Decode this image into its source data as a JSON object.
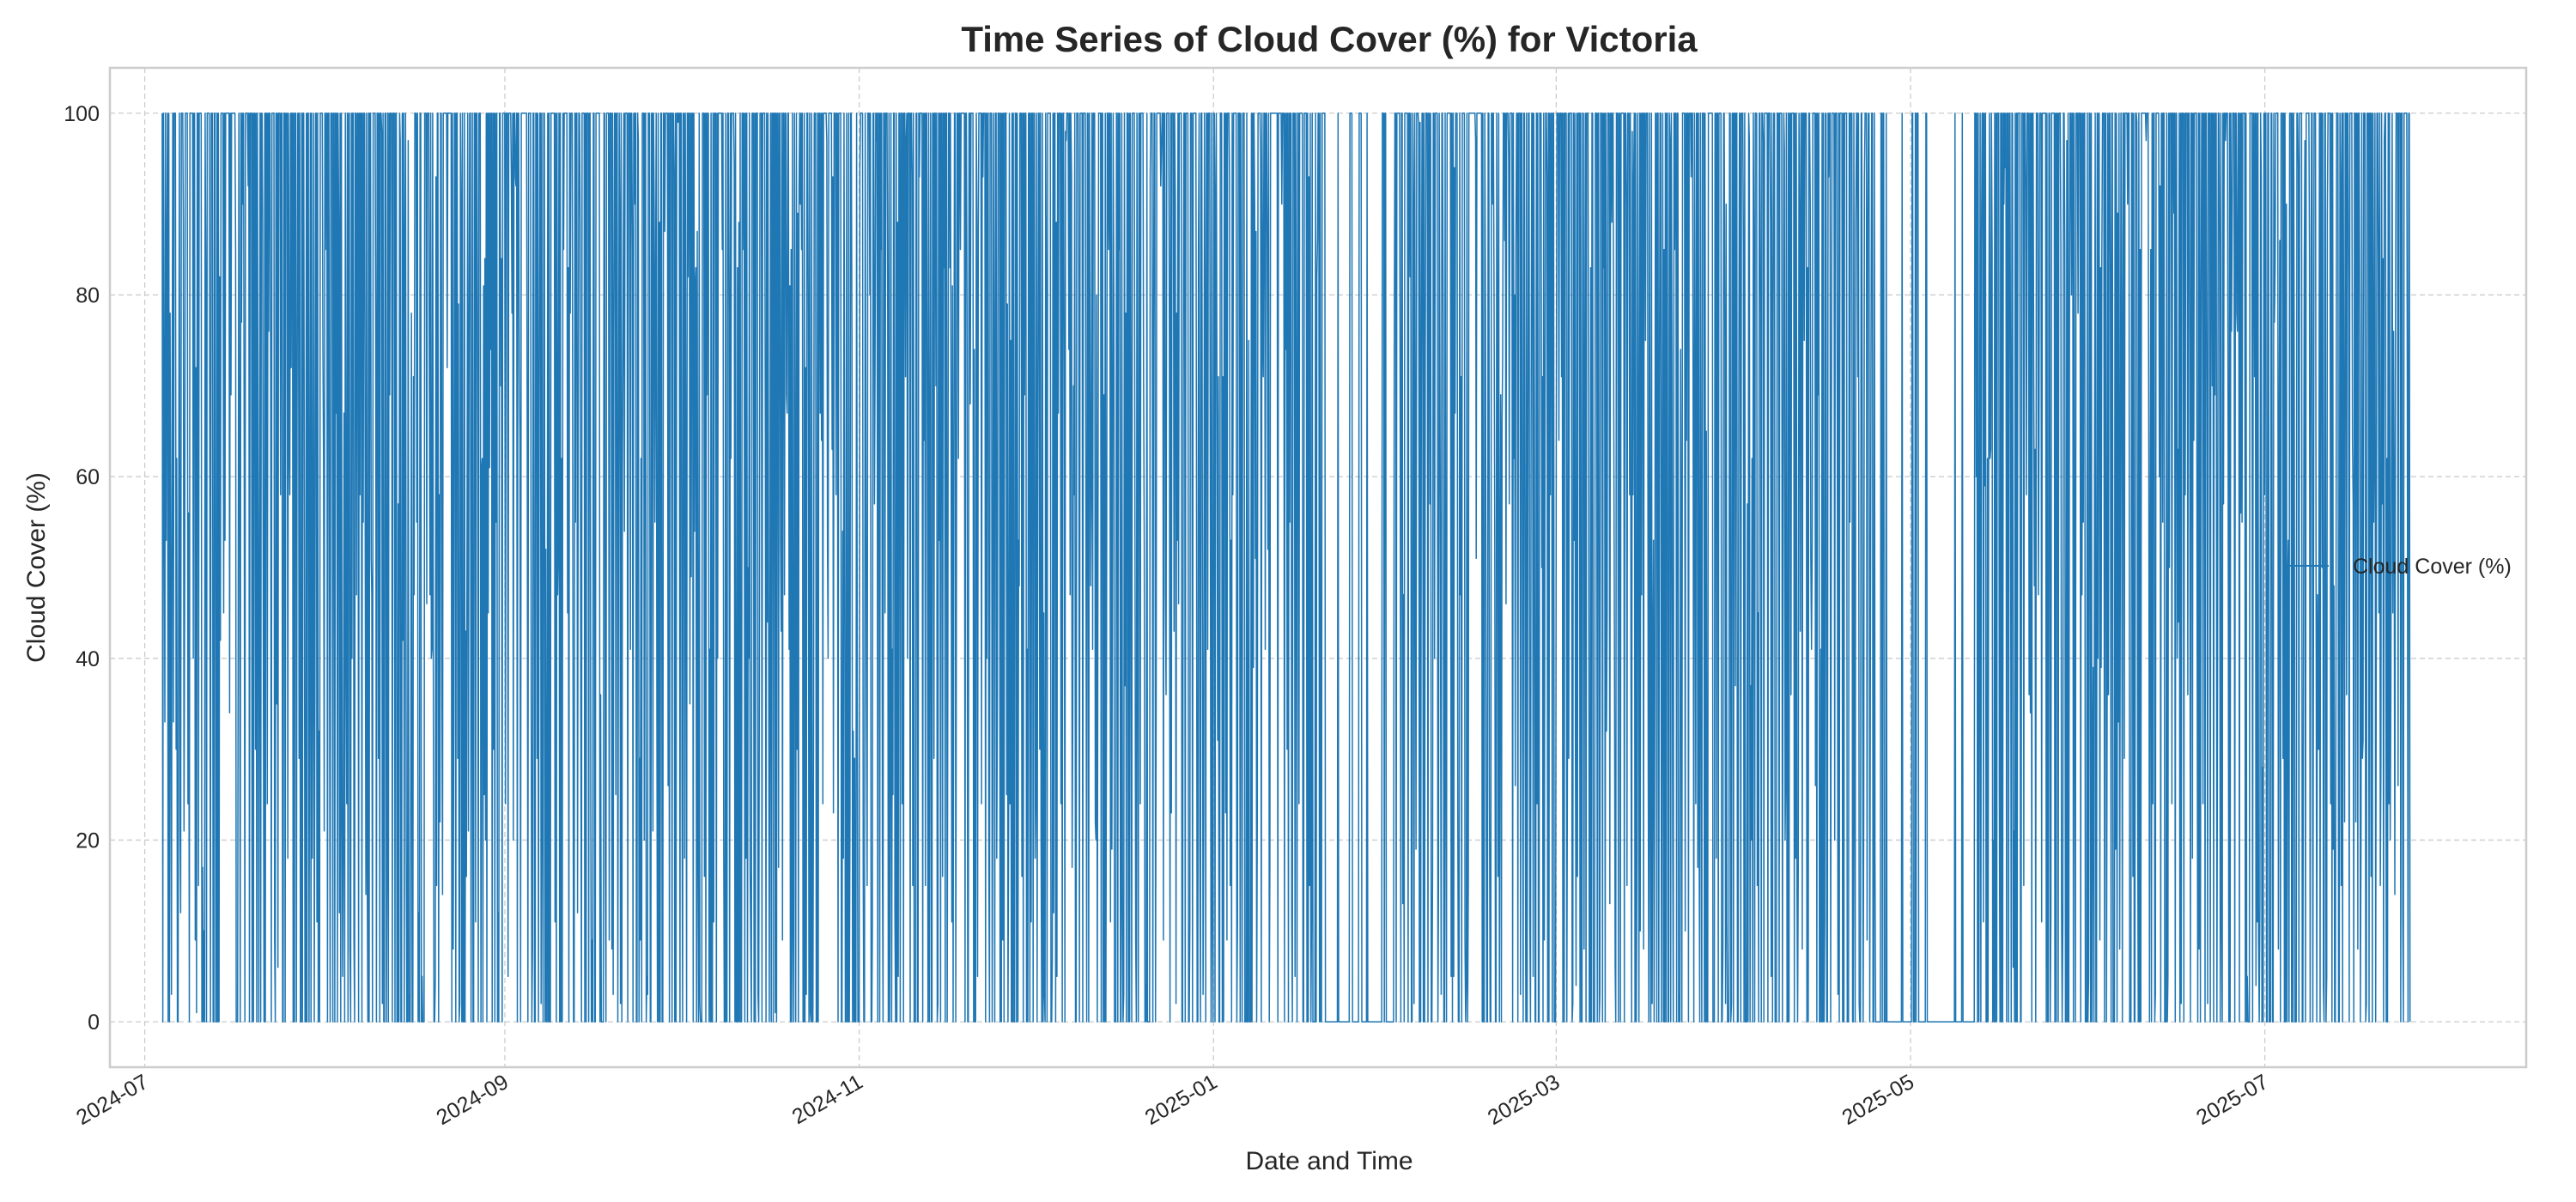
{
  "chart_data": {
    "type": "line",
    "title": "Time Series of Cloud Cover (%) for Victoria",
    "xlabel": "Date and Time",
    "ylabel": "Cloud Cover (%)",
    "xlim": [
      "2024-06-25",
      "2025-08-15"
    ],
    "ylim": [
      -5,
      105
    ],
    "x_ticks": [
      "2024-07",
      "2024-09",
      "2024-11",
      "2025-01",
      "2025-03",
      "2025-05",
      "2025-07"
    ],
    "y_ticks": [
      0,
      20,
      40,
      60,
      80,
      100
    ],
    "grid": true,
    "legend_position": "center-right",
    "series": [
      {
        "name": "Cloud Cover (%)",
        "color": "#1f77b4",
        "x_start": "2024-07-04",
        "x_end": "2025-07-26",
        "sampling": "hourly",
        "sparse_periods": [
          "2025-01-20 to 2025-02-01",
          "2025-04-25 to 2025-05-12"
        ],
        "values": [
          97,
          0,
          100,
          100,
          62,
          0,
          100,
          85,
          100,
          20,
          0,
          100,
          100,
          45,
          3,
          100,
          100,
          78,
          0,
          100,
          100,
          30,
          100,
          0,
          100,
          55,
          100,
          100,
          12,
          0,
          100,
          100,
          88,
          5,
          100,
          67,
          0,
          100,
          100,
          24,
          100,
          0,
          100,
          100,
          71,
          0,
          100,
          40,
          100,
          100,
          9,
          0,
          100,
          100,
          93,
          15,
          100,
          0,
          100,
          58,
          100,
          100,
          0,
          36,
          100,
          100,
          82,
          0,
          100,
          100,
          18,
          100,
          64,
          0,
          100,
          100,
          100,
          47,
          0,
          100,
          8,
          100,
          100,
          75,
          0,
          100,
          100,
          29,
          100,
          0,
          100,
          100,
          90,
          2,
          100,
          53,
          0,
          100,
          100,
          100,
          16,
          100,
          0,
          100,
          69,
          100,
          100,
          0,
          41,
          100,
          100,
          85,
          0,
          100,
          11,
          100,
          100,
          57,
          0,
          100
        ]
      }
    ]
  }
}
